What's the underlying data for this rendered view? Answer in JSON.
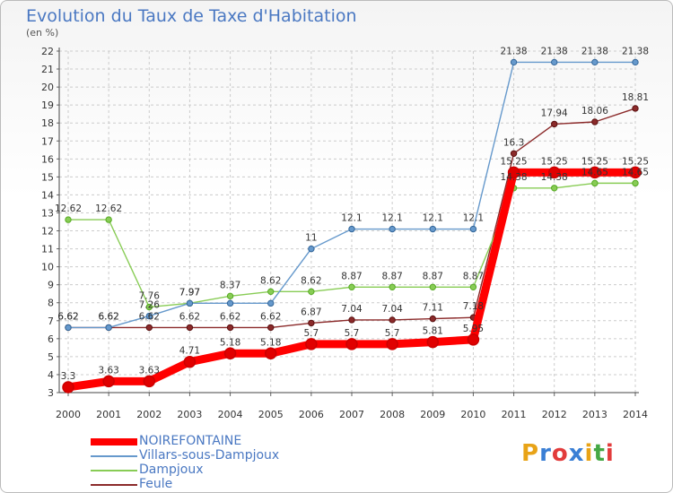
{
  "header": {
    "title": "Evolution du Taux de Taxe d'Habitation",
    "unit": "(en %)"
  },
  "logo": {
    "text": "Proxiti",
    "colors": [
      "#e8a317",
      "#3a7fd5",
      "#e23c3c",
      "#3a7fd5",
      "#e8a317",
      "#45a845",
      "#e23c3c"
    ]
  },
  "chart_data": {
    "type": "line",
    "title": "Evolution du Taux de Taxe d'Habitation",
    "ylabel": "(en %)",
    "xlabel": "",
    "x": [
      "2000",
      "2001",
      "2002",
      "2003",
      "2004",
      "2005",
      "2006",
      "2007",
      "2008",
      "2009",
      "2010",
      "2011",
      "2012",
      "2013",
      "2014"
    ],
    "ylim": [
      3,
      22
    ],
    "yticks": [
      3,
      4,
      5,
      6,
      7,
      8,
      9,
      10,
      11,
      12,
      13,
      14,
      15,
      16,
      17,
      18,
      19,
      20,
      21,
      22
    ],
    "grid": true,
    "legend_position": "bottom-left",
    "series": [
      {
        "name": "NOIREFONTAINE",
        "color": "#ff0000",
        "values": [
          3.3,
          3.63,
          3.63,
          4.71,
          5.18,
          5.18,
          5.7,
          5.7,
          5.7,
          5.81,
          5.95,
          15.25,
          15.25,
          15.25,
          15.25
        ],
        "labels": [
          "3.3",
          "3.63",
          "3.63",
          "4.71",
          "5.18",
          "5.18",
          "5.7",
          "5.7",
          "5.7",
          "5.81",
          "5.95",
          "15.25",
          "15.25",
          "15.25",
          "15.25"
        ]
      },
      {
        "name": "Villars-sous-Dampjoux",
        "color": "#6699cc",
        "values": [
          6.62,
          6.62,
          7.26,
          7.97,
          7.97,
          7.97,
          11,
          12.1,
          12.1,
          12.1,
          12.1,
          21.38,
          21.38,
          21.38,
          21.38
        ],
        "labels": [
          "6.62",
          "6.62",
          "7.26",
          "7.97",
          "",
          "",
          "11",
          "12.1",
          "12.1",
          "12.1",
          "12.1",
          "21.38",
          "21.38",
          "21.38",
          "21.38"
        ]
      },
      {
        "name": "Dampjoux",
        "color": "#88cc55",
        "values": [
          12.62,
          12.62,
          7.76,
          7.97,
          8.37,
          8.62,
          8.62,
          8.87,
          8.87,
          8.87,
          8.87,
          14.38,
          14.38,
          14.65,
          14.65
        ],
        "labels": [
          "12.62",
          "12.62",
          "7.76",
          "7.97",
          "8.37",
          "8.62",
          "8.62",
          "8.87",
          "8.87",
          "8.87",
          "8.87",
          "14.38",
          "14.38",
          "14.65",
          "14.65"
        ]
      },
      {
        "name": "Feule",
        "color": "#8b2a2a",
        "values": [
          6.62,
          6.62,
          6.62,
          6.62,
          6.62,
          6.62,
          6.87,
          7.04,
          7.04,
          7.11,
          7.18,
          16.3,
          17.94,
          18.06,
          18.81
        ],
        "labels": [
          "6.62",
          "6.62",
          "6.62",
          "6.62",
          "6.62",
          "6.62",
          "6.87",
          "7.04",
          "7.04",
          "7.11",
          "7.18",
          "16.3",
          "17.94",
          "18.06",
          "18.81"
        ]
      }
    ]
  }
}
